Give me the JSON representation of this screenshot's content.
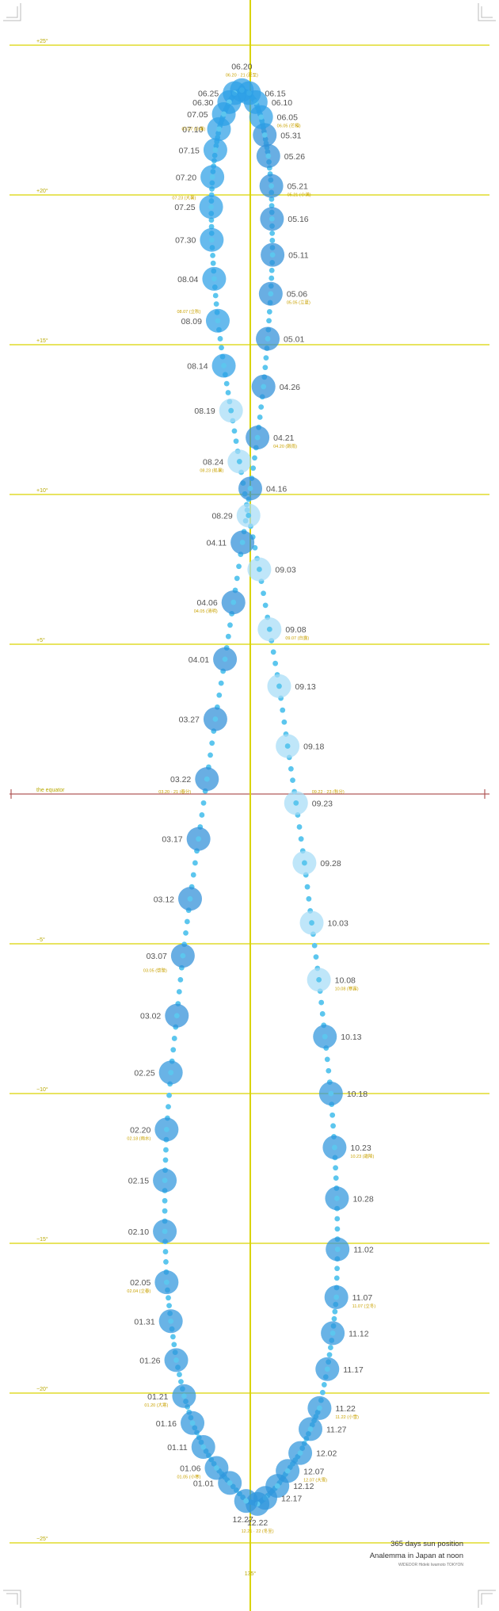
{
  "caption": {
    "line1": "365 days sun position",
    "line2": "Analemma in Japan at noon",
    "credit": "WIDEDOR Hideki Iwamoto TOKYON"
  },
  "labels": {
    "equator": "the equator",
    "bottom_meridian": "135°"
  },
  "colors": {
    "summer_sun": "#2c9fe6",
    "autumn_sun": "#a6dcf6",
    "spring_sun": "#2f8fd8",
    "winter_sun": "#2f95dd",
    "trail_dot": "#5cc6ee",
    "guide_line": "#d9d400",
    "sekki_text": "#c9a200"
  },
  "latitude_lines": [
    {
      "label": "+25°",
      "deg": 25
    },
    {
      "label": "+20°",
      "deg": 20
    },
    {
      "label": "+15°",
      "deg": 15
    },
    {
      "label": "+10°",
      "deg": 10
    },
    {
      "label": "+5°",
      "deg": 5
    },
    {
      "label": "the equator",
      "deg": 0
    },
    {
      "label": "−5°",
      "deg": -5
    },
    {
      "label": "−10°",
      "deg": -10
    },
    {
      "label": "−15°",
      "deg": -15
    },
    {
      "label": "−20°",
      "deg": -20
    },
    {
      "label": "−25°",
      "deg": -25
    }
  ],
  "sun_positions": [
    {
      "date": "01.01",
      "eot": -3.4,
      "dec": -23.0,
      "side": "left"
    },
    {
      "date": "01.06",
      "eot": -5.6,
      "dec": -22.5,
      "side": "left"
    },
    {
      "date": "01.11",
      "eot": -7.8,
      "dec": -21.8,
      "side": "left"
    },
    {
      "date": "01.16",
      "eot": -9.6,
      "dec": -21.0,
      "side": "left"
    },
    {
      "date": "01.21",
      "eot": -11.0,
      "dec": -20.1,
      "side": "left"
    },
    {
      "date": "01.26",
      "eot": -12.3,
      "dec": -18.9,
      "side": "left"
    },
    {
      "date": "01.31",
      "eot": -13.2,
      "dec": -17.6,
      "side": "left"
    },
    {
      "date": "02.05",
      "eot": -13.9,
      "dec": -16.3,
      "side": "left"
    },
    {
      "date": "02.10",
      "eot": -14.2,
      "dec": -14.6,
      "side": "left"
    },
    {
      "date": "02.15",
      "eot": -14.2,
      "dec": -12.9,
      "side": "left"
    },
    {
      "date": "02.20",
      "eot": -13.9,
      "dec": -11.2,
      "side": "left"
    },
    {
      "date": "02.25",
      "eot": -13.2,
      "dec": -9.3,
      "side": "left"
    },
    {
      "date": "03.02",
      "eot": -12.2,
      "dec": -7.4,
      "side": "left"
    },
    {
      "date": "03.07",
      "eot": -11.2,
      "dec": -5.4,
      "side": "left"
    },
    {
      "date": "03.12",
      "eot": -10.0,
      "dec": -3.5,
      "side": "left"
    },
    {
      "date": "03.17",
      "eot": -8.6,
      "dec": -1.5,
      "side": "left"
    },
    {
      "date": "03.22",
      "eot": -7.2,
      "dec": 0.5,
      "side": "left"
    },
    {
      "date": "03.27",
      "eot": -5.8,
      "dec": 2.5,
      "side": "left"
    },
    {
      "date": "04.01",
      "eot": -4.2,
      "dec": 4.5,
      "side": "left"
    },
    {
      "date": "04.06",
      "eot": -2.8,
      "dec": 6.4,
      "side": "left"
    },
    {
      "date": "04.11",
      "eot": -1.3,
      "dec": 8.4,
      "side": "left"
    },
    {
      "date": "04.16",
      "eot": 0.0,
      "dec": 10.2,
      "side": "right"
    },
    {
      "date": "04.21",
      "eot": 1.2,
      "dec": 11.9,
      "side": "right"
    },
    {
      "date": "04.26",
      "eot": 2.2,
      "dec": 13.6,
      "side": "right"
    },
    {
      "date": "05.01",
      "eot": 2.9,
      "dec": 15.2,
      "side": "right"
    },
    {
      "date": "05.06",
      "eot": 3.4,
      "dec": 16.7,
      "side": "right"
    },
    {
      "date": "05.11",
      "eot": 3.7,
      "dec": 18.0,
      "side": "right"
    },
    {
      "date": "05.16",
      "eot": 3.6,
      "dec": 19.2,
      "side": "right"
    },
    {
      "date": "05.21",
      "eot": 3.5,
      "dec": 20.3,
      "side": "right"
    },
    {
      "date": "05.26",
      "eot": 3.0,
      "dec": 21.3,
      "side": "right"
    },
    {
      "date": "05.31",
      "eot": 2.4,
      "dec": 22.0,
      "side": "right"
    },
    {
      "date": "06.05",
      "eot": 1.8,
      "dec": 22.6,
      "side": "right"
    },
    {
      "date": "06.10",
      "eot": 0.9,
      "dec": 23.1,
      "side": "right"
    },
    {
      "date": "06.15",
      "eot": -0.2,
      "dec": 23.4,
      "side": "right"
    },
    {
      "date": "06.20",
      "eot": -1.4,
      "dec": 23.5,
      "side": "top"
    },
    {
      "date": "06.25",
      "eot": -2.6,
      "dec": 23.4,
      "side": "left"
    },
    {
      "date": "06.30",
      "eot": -3.5,
      "dec": 23.1,
      "side": "left"
    },
    {
      "date": "07.05",
      "eot": -4.4,
      "dec": 22.7,
      "side": "left"
    },
    {
      "date": "07.10",
      "eot": -5.2,
      "dec": 22.2,
      "side": "left"
    },
    {
      "date": "07.15",
      "eot": -5.8,
      "dec": 21.5,
      "side": "left"
    },
    {
      "date": "07.20",
      "eot": -6.3,
      "dec": 20.6,
      "side": "left"
    },
    {
      "date": "07.25",
      "eot": -6.5,
      "dec": 19.6,
      "side": "left"
    },
    {
      "date": "07.30",
      "eot": -6.4,
      "dec": 18.5,
      "side": "left"
    },
    {
      "date": "08.04",
      "eot": -6.0,
      "dec": 17.2,
      "side": "left"
    },
    {
      "date": "08.09",
      "eot": -5.4,
      "dec": 15.8,
      "side": "left"
    },
    {
      "date": "08.14",
      "eot": -4.4,
      "dec": 14.3,
      "side": "left"
    },
    {
      "date": "08.19",
      "eot": -3.2,
      "dec": 12.8,
      "side": "left"
    },
    {
      "date": "08.24",
      "eot": -1.8,
      "dec": 11.1,
      "side": "left"
    },
    {
      "date": "08.29",
      "eot": -0.3,
      "dec": 9.3,
      "side": "left"
    },
    {
      "date": "09.03",
      "eot": 1.5,
      "dec": 7.5,
      "side": "right"
    },
    {
      "date": "09.08",
      "eot": 3.2,
      "dec": 5.5,
      "side": "right"
    },
    {
      "date": "09.13",
      "eot": 4.8,
      "dec": 3.6,
      "side": "right"
    },
    {
      "date": "09.18",
      "eot": 6.2,
      "dec": 1.6,
      "side": "right"
    },
    {
      "date": "09.23",
      "eot": 7.6,
      "dec": -0.3,
      "side": "right"
    },
    {
      "date": "09.28",
      "eot": 9.0,
      "dec": -2.3,
      "side": "right"
    },
    {
      "date": "10.03",
      "eot": 10.2,
      "dec": -4.3,
      "side": "right"
    },
    {
      "date": "10.08",
      "eot": 11.4,
      "dec": -6.2,
      "side": "right"
    },
    {
      "date": "10.13",
      "eot": 12.4,
      "dec": -8.1,
      "side": "right"
    },
    {
      "date": "10.18",
      "eot": 13.4,
      "dec": -10.0,
      "side": "right"
    },
    {
      "date": "10.23",
      "eot": 14.0,
      "dec": -11.8,
      "side": "right"
    },
    {
      "date": "10.28",
      "eot": 14.4,
      "dec": -13.5,
      "side": "right"
    },
    {
      "date": "11.02",
      "eot": 14.5,
      "dec": -15.2,
      "side": "right"
    },
    {
      "date": "11.07",
      "eot": 14.3,
      "dec": -16.8,
      "side": "right"
    },
    {
      "date": "11.12",
      "eot": 13.7,
      "dec": -18.0,
      "side": "right"
    },
    {
      "date": "11.17",
      "eot": 12.8,
      "dec": -19.2,
      "side": "right"
    },
    {
      "date": "11.22",
      "eot": 11.5,
      "dec": -20.5,
      "side": "right"
    },
    {
      "date": "11.27",
      "eot": 10.0,
      "dec": -21.2,
      "side": "right"
    },
    {
      "date": "12.02",
      "eot": 8.3,
      "dec": -22.0,
      "side": "right"
    },
    {
      "date": "12.07",
      "eot": 6.2,
      "dec": -22.6,
      "side": "right"
    },
    {
      "date": "12.12",
      "eot": 4.5,
      "dec": -23.1,
      "side": "right"
    },
    {
      "date": "12.17",
      "eot": 2.5,
      "dec": -23.5,
      "side": "right"
    },
    {
      "date": "12.22",
      "eot": 1.2,
      "dec": -23.7,
      "side": "bottom"
    },
    {
      "date": "12.27",
      "eot": -0.7,
      "dec": -23.6,
      "side": "bottom-left"
    }
  ],
  "solar_terms": [
    {
      "text": "06.20 · 21 (夏至)",
      "eot": -1.4,
      "dec": 23.5,
      "side": "top"
    },
    {
      "text": "07.07 (小暑)",
      "eot": -4.8,
      "dec": 22.5,
      "side": "left"
    },
    {
      "text": "06.05 (芒種)",
      "eot": 1.8,
      "dec": 22.6,
      "side": "right"
    },
    {
      "text": "07.23 (大暑)",
      "eot": -6.4,
      "dec": 20.2,
      "side": "left"
    },
    {
      "text": "05.21 (小満)",
      "eot": 3.5,
      "dec": 20.3,
      "side": "right"
    },
    {
      "text": "08.07 (立秋)",
      "eot": -5.6,
      "dec": 16.4,
      "side": "left"
    },
    {
      "text": "05.05 (立夏)",
      "eot": 3.4,
      "dec": 16.7,
      "side": "right"
    },
    {
      "text": "08.23 (処暑)",
      "eot": -1.8,
      "dec": 11.1,
      "side": "left"
    },
    {
      "text": "04.20 (穀雨)",
      "eot": 1.2,
      "dec": 11.9,
      "side": "right"
    },
    {
      "text": "09.07 (白露)",
      "eot": 3.2,
      "dec": 5.5,
      "side": "right"
    },
    {
      "text": "04.05 (清明)",
      "eot": -2.8,
      "dec": 6.4,
      "side": "left"
    },
    {
      "text": "03.20 · 21 (春分)",
      "eot": -7.2,
      "dec": 0.0,
      "side": "left"
    },
    {
      "text": "09.22 · 23 (秋分)",
      "eot": 7.6,
      "dec": 0.0,
      "side": "right"
    },
    {
      "text": "03.05 (啓蟄)",
      "eot": -11.2,
      "dec": -5.6,
      "side": "left"
    },
    {
      "text": "10.08 (寒露)",
      "eot": 11.4,
      "dec": -6.2,
      "side": "right"
    },
    {
      "text": "02.18 (雨水)",
      "eot": -13.9,
      "dec": -11.2,
      "side": "left"
    },
    {
      "text": "10.23 (霜降)",
      "eot": 14.0,
      "dec": -11.8,
      "side": "right"
    },
    {
      "text": "02.04 (立春)",
      "eot": -13.9,
      "dec": -16.3,
      "side": "left"
    },
    {
      "text": "11.07 (立冬)",
      "eot": 14.3,
      "dec": -16.8,
      "side": "right"
    },
    {
      "text": "01.20 (大寒)",
      "eot": -11.0,
      "dec": -20.1,
      "side": "left"
    },
    {
      "text": "11.22 (小雪)",
      "eot": 11.5,
      "dec": -20.5,
      "side": "right"
    },
    {
      "text": "01.05 (小寒)",
      "eot": -5.6,
      "dec": -22.5,
      "side": "left"
    },
    {
      "text": "12.07 (大雪)",
      "eot": 6.2,
      "dec": -22.6,
      "side": "right"
    },
    {
      "text": "12.21 · 22 (冬至)",
      "eot": 1.2,
      "dec": -23.7,
      "side": "bottom"
    }
  ]
}
